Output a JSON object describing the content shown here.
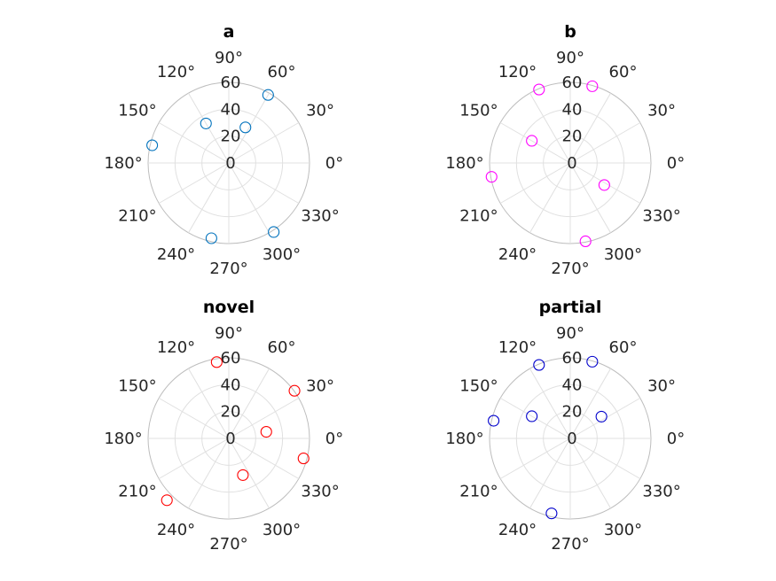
{
  "chart_data": [
    {
      "type": "scatter",
      "subtype": "polar",
      "title": "a",
      "color": "#0072BD",
      "rlim": [
        0,
        60
      ],
      "rticks": [
        "0",
        "20",
        "40",
        "60"
      ],
      "theta_ticks": [
        "0°",
        "30°",
        "60°",
        "90°",
        "120°",
        "150°",
        "180°",
        "210°",
        "240°",
        "270°",
        "300°",
        "330°"
      ],
      "points": [
        {
          "theta": 60,
          "r": 62
        },
        {
          "theta": 120,
          "r": 36
        },
        {
          "theta": 65,
          "r": 31
        },
        {
          "theta": 167,
          "r": 62
        },
        {
          "theta": 257,
          "r": 61
        },
        {
          "theta": 303,
          "r": 65
        }
      ]
    },
    {
      "type": "scatter",
      "subtype": "polar",
      "title": "b",
      "color": "#FF00FF",
      "rlim": [
        0,
        60
      ],
      "rticks": [
        "0",
        "20",
        "40",
        "60"
      ],
      "theta_ticks": [
        "0°",
        "30°",
        "60°",
        "90°",
        "120°",
        "150°",
        "180°",
        "210°",
        "240°",
        "270°",
        "300°",
        "330°"
      ],
      "points": [
        {
          "theta": 74,
          "r": 63
        },
        {
          "theta": 113,
          "r": 63
        },
        {
          "theta": 150,
          "r": 35
        },
        {
          "theta": 190,
          "r": 63
        },
        {
          "theta": 281,
          "r": 63
        },
        {
          "theta": 327,
          "r": 32
        }
      ]
    },
    {
      "type": "scatter",
      "subtype": "polar",
      "title": "novel",
      "color": "#FF0000",
      "rlim": [
        0,
        60
      ],
      "rticks": [
        "0",
        "20",
        "40",
        "60"
      ],
      "theta_ticks": [
        "0°",
        "30°",
        "60°",
        "90°",
        "120°",
        "150°",
        "180°",
        "210°",
        "240°",
        "270°",
        "300°",
        "330°"
      ],
      "points": [
        {
          "theta": 99,
          "r": 61
        },
        {
          "theta": 36,
          "r": 64
        },
        {
          "theta": 10,
          "r": 30
        },
        {
          "theta": 345,
          "r": 61
        },
        {
          "theta": 225,
          "r": 69
        },
        {
          "theta": 291,
          "r": 31
        }
      ]
    },
    {
      "type": "scatter",
      "subtype": "polar",
      "title": "partial",
      "color": "#0000CC",
      "rlim": [
        0,
        60
      ],
      "rticks": [
        "0",
        "20",
        "40",
        "60"
      ],
      "theta_ticks": [
        "0°",
        "30°",
        "60°",
        "90°",
        "120°",
        "150°",
        "180°",
        "210°",
        "240°",
        "270°",
        "300°",
        "330°"
      ],
      "points": [
        {
          "theta": 74,
          "r": 63
        },
        {
          "theta": 113,
          "r": 63
        },
        {
          "theta": 150,
          "r": 35
        },
        {
          "theta": 167,
          "r": 62
        },
        {
          "theta": 35,
          "r": 30
        },
        {
          "theta": 256,
          "r": 61
        }
      ]
    }
  ]
}
